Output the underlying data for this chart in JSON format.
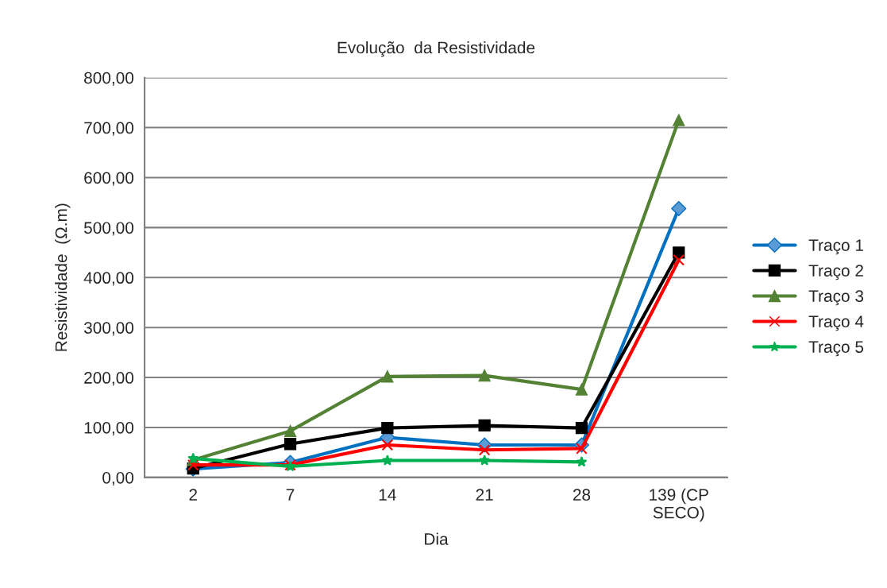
{
  "chart_data": {
    "type": "line",
    "title": "Evolução  da Resistividade",
    "xlabel": "Dia",
    "ylabel": "Resistividade  (Ω.m)",
    "categories": [
      "2",
      "7",
      "14",
      "21",
      "28",
      "139 (CP SECO)"
    ],
    "series": [
      {
        "name": "Traço 1",
        "color": "#0070c0",
        "marker": "diamond",
        "values": [
          17,
          30,
          80,
          65,
          65,
          538
        ]
      },
      {
        "name": "Traço 2",
        "color": "#000000",
        "marker": "square",
        "values": [
          18,
          67,
          99,
          104,
          99,
          450
        ]
      },
      {
        "name": "Traço 3",
        "color": "#548235",
        "marker": "triangle",
        "values": [
          35,
          93,
          202,
          204,
          176,
          715
        ]
      },
      {
        "name": "Traço 4",
        "color": "#ff0000",
        "marker": "cross",
        "values": [
          25,
          25,
          65,
          55,
          58,
          435
        ]
      },
      {
        "name": "Traço 5",
        "color": "#00b050",
        "marker": "star",
        "values": [
          38,
          22,
          34,
          34,
          31,
          null
        ]
      }
    ],
    "ylim": [
      0,
      800
    ],
    "yticks": [
      {
        "value": 0,
        "label": "0,00"
      },
      {
        "value": 100,
        "label": "100,00"
      },
      {
        "value": 200,
        "label": "200,00"
      },
      {
        "value": 300,
        "label": "300,00"
      },
      {
        "value": 400,
        "label": "400,00"
      },
      {
        "value": 500,
        "label": "500,00"
      },
      {
        "value": 600,
        "label": "600,00"
      },
      {
        "value": 700,
        "label": "700,00"
      },
      {
        "value": 800,
        "label": "800,00"
      }
    ],
    "grid": "y",
    "legend": "right"
  }
}
